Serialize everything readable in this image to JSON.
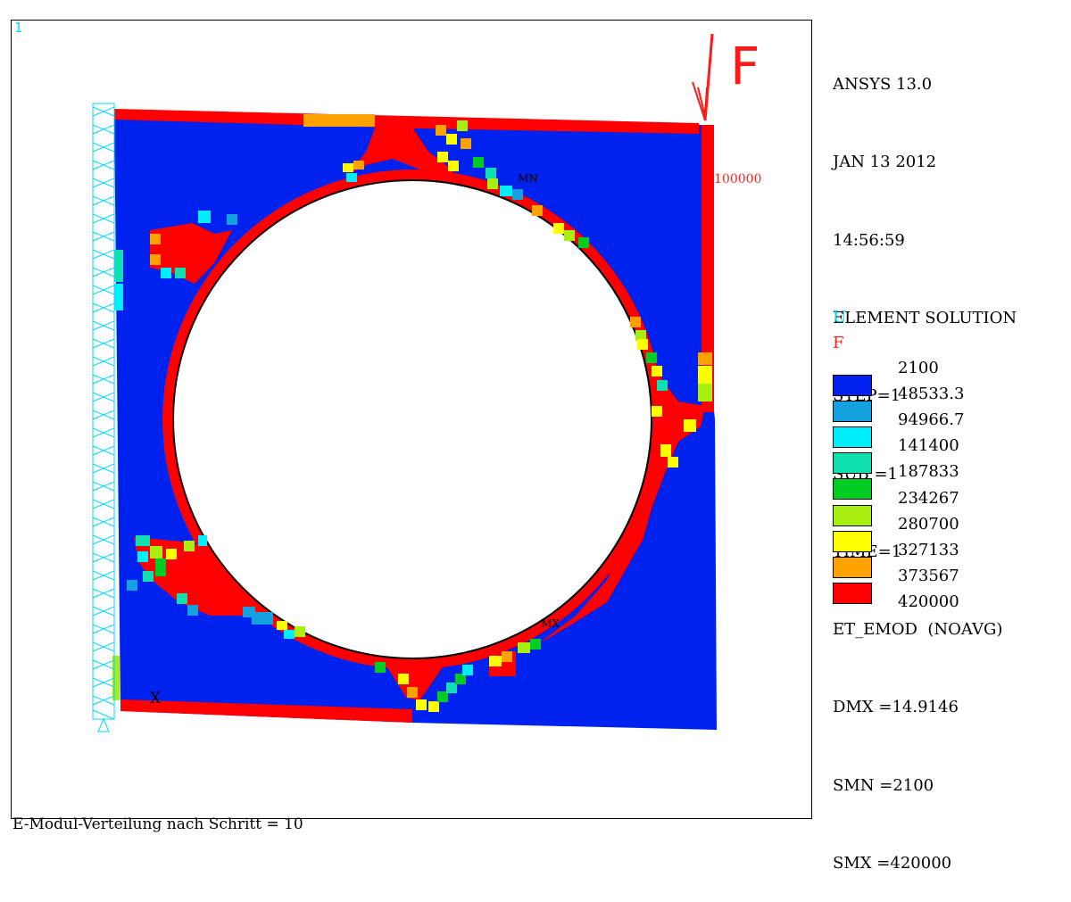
{
  "window_number": "1",
  "caption": "E-Modul-Verteilung nach Schritt = 10",
  "info_lines": [
    "ANSYS 13.0",
    "JAN 13 2012",
    "14:56:59",
    "ELEMENT SOLUTION",
    "STEP=1",
    "SUB =1",
    "TIME=1",
    "ET_EMOD  (NOAVG)",
    "DMX =14.9146",
    "SMN =2100",
    "SMX =420000"
  ],
  "symbol_labels": {
    "u": "U",
    "f": "F"
  },
  "legend": {
    "labels": [
      "2100",
      "48533.3",
      "94966.7",
      "141400",
      "187833",
      "234267",
      "280700",
      "327133",
      "373567",
      "420000"
    ],
    "colors": [
      "#0022ee",
      "#15a0e0",
      "#00eeff",
      "#10e0b0",
      "#00cc22",
      "#a8ee10",
      "#ffff00",
      "#ffa200",
      "#ff0000"
    ]
  },
  "force": {
    "label": "F",
    "value": "100000",
    "color": "#ff1a1a"
  },
  "markers": {
    "min": "MN",
    "max": "MX",
    "origin": "X"
  },
  "field_colors": {
    "background_material": "#0022ee",
    "max": "#ff0000",
    "constraint": "#00d8ff"
  }
}
